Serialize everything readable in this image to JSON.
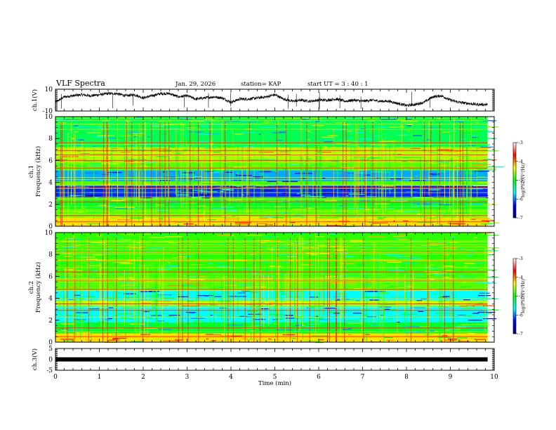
{
  "header": {
    "title": "VLF Spectra",
    "date": "Jan. 29, 2026",
    "station": "station= KAP",
    "start": "start  UT  =   3 : 40 : 1"
  },
  "chart_data": [
    {
      "type": "line",
      "name": "ch1-voltage",
      "ylabel": "ch.1(V)",
      "ylim": [
        -10,
        10
      ],
      "y_ticks": [
        "10",
        "-10"
      ],
      "x_range_min": [
        0,
        9.85
      ],
      "samples_min": [
        0,
        0.2,
        0.4,
        0.6,
        0.8,
        1.0,
        1.2,
        1.4,
        1.6,
        1.8,
        2.0,
        2.2,
        2.4,
        2.6,
        2.8,
        3.0,
        3.2,
        3.4,
        3.6,
        3.8,
        4.0,
        4.2,
        4.4,
        4.6,
        4.8,
        5.0,
        5.2,
        5.4,
        5.6,
        5.8,
        6.0,
        6.2,
        6.4,
        6.6,
        6.8,
        7.0,
        7.2,
        7.4,
        7.6,
        7.8,
        8.0,
        8.2,
        8.4,
        8.6,
        8.8,
        9.0,
        9.2,
        9.4,
        9.6,
        9.85
      ],
      "values_v": [
        -2,
        3,
        4,
        5,
        4,
        5,
        6,
        6,
        4,
        5,
        2,
        4,
        6,
        6,
        3,
        4,
        1,
        2,
        3,
        2,
        -2,
        1,
        1,
        2,
        3,
        5,
        1,
        -1,
        0,
        -1,
        0,
        0,
        1,
        -1,
        0,
        -1,
        0,
        -1,
        -1,
        -3,
        -5,
        -4,
        -2,
        3,
        4,
        0,
        -2,
        -3,
        -4,
        -4
      ]
    },
    {
      "type": "heatmap",
      "name": "ch1-spectrogram",
      "ylabel": "ch.1\nFrequency (kHz)",
      "ylim": [
        0,
        10
      ],
      "y_ticks": [
        "0",
        "2",
        "4",
        "6",
        "8",
        "10"
      ],
      "x_range_min": [
        0,
        9.85
      ],
      "bands_khz": [
        {
          "from": 0.0,
          "to": 0.8,
          "level": -4.5
        },
        {
          "from": 0.8,
          "to": 1.6,
          "level": -5.0
        },
        {
          "from": 1.6,
          "to": 2.6,
          "level": -5.3
        },
        {
          "from": 2.6,
          "to": 3.7,
          "level": -6.3
        },
        {
          "from": 3.7,
          "to": 4.1,
          "level": -5.0
        },
        {
          "from": 4.1,
          "to": 5.1,
          "level": -6.0
        },
        {
          "from": 5.1,
          "to": 5.9,
          "level": -5.0
        },
        {
          "from": 5.9,
          "to": 7.2,
          "level": -4.8
        },
        {
          "from": 7.2,
          "to": 10.0,
          "level": -5.4
        }
      ],
      "lines_khz": [
        0.4,
        1.0,
        2.2,
        3.5,
        5.3,
        6.0,
        6.5,
        6.9,
        7.6
      ]
    },
    {
      "type": "heatmap",
      "name": "ch2-spectrogram",
      "ylabel": "ch.2\nFrequency (kHz)",
      "ylim": [
        0,
        10
      ],
      "y_ticks": [
        "0",
        "2",
        "4",
        "6",
        "8",
        "10"
      ],
      "x_range_min": [
        0,
        9.85
      ],
      "bands_khz": [
        {
          "from": 0.0,
          "to": 0.8,
          "level": -4.5
        },
        {
          "from": 0.8,
          "to": 1.8,
          "level": -5.3
        },
        {
          "from": 1.8,
          "to": 3.3,
          "level": -5.8
        },
        {
          "from": 3.3,
          "to": 3.8,
          "level": -4.8
        },
        {
          "from": 3.8,
          "to": 4.7,
          "level": -5.8
        },
        {
          "from": 4.7,
          "to": 6.0,
          "level": -5.0
        },
        {
          "from": 6.0,
          "to": 10.0,
          "level": -5.1
        }
      ],
      "lines_khz": [
        0.5,
        1.3,
        2.9,
        3.5,
        4.8,
        5.6,
        6.4,
        7.4,
        8.2
      ]
    },
    {
      "type": "line",
      "name": "ch3-voltage",
      "ylabel": "ch.3(V)",
      "ylim": [
        -5,
        5
      ],
      "y_ticks": [
        "5",
        "0",
        "-5"
      ],
      "x_range_min": [
        0,
        9.85
      ],
      "constant_v": 0
    }
  ],
  "colorbar": {
    "label": "log(PSD)(V²/Hz)",
    "ticks": [
      "-3",
      "-4",
      "-5",
      "-6",
      "-7"
    ],
    "colors": [
      "#ffffff",
      "#ff0000",
      "#ffff00",
      "#00ff00",
      "#00ffff",
      "#0000ff",
      "#000080"
    ]
  },
  "x_axis": {
    "label": "Time  (min)",
    "ticks": [
      "0",
      "1",
      "2",
      "3",
      "4",
      "5",
      "6",
      "7",
      "8",
      "9",
      "10"
    ],
    "range": [
      0,
      10
    ]
  }
}
